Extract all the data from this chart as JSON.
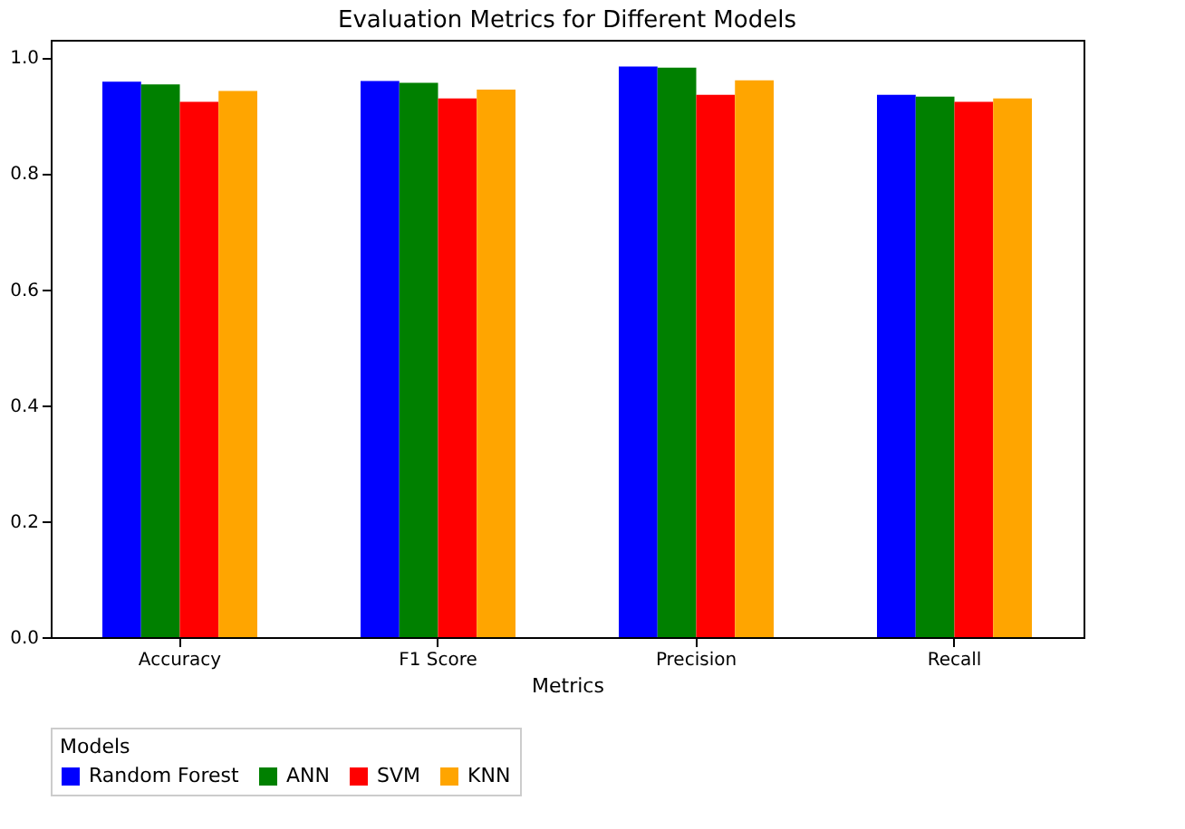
{
  "chart_data": {
    "type": "bar",
    "title": "Evaluation Metrics for Different Models",
    "xlabel": "Metrics",
    "legend_title": "Models",
    "legend": "bottom",
    "categories": [
      "Accuracy",
      "F1 Score",
      "Precision",
      "Recall"
    ],
    "series": [
      {
        "name": "Random Forest",
        "color": "#0000ff",
        "values": [
          0.958,
          0.959,
          0.984,
          0.935
        ]
      },
      {
        "name": "ANN",
        "color": "#008000",
        "values": [
          0.953,
          0.956,
          0.982,
          0.932
        ]
      },
      {
        "name": "SVM",
        "color": "#ff0000",
        "values": [
          0.923,
          0.929,
          0.935,
          0.923
        ]
      },
      {
        "name": "KNN",
        "color": "#ffa500",
        "values": [
          0.942,
          0.944,
          0.96,
          0.929
        ]
      }
    ],
    "ylim": [
      0,
      1.03
    ],
    "yticks": [
      {
        "value": 0,
        "label": "0.0"
      },
      0.2,
      0.4,
      0.6,
      0.8,
      {
        "value": 1,
        "label": "1.0"
      }
    ],
    "grid": false
  }
}
